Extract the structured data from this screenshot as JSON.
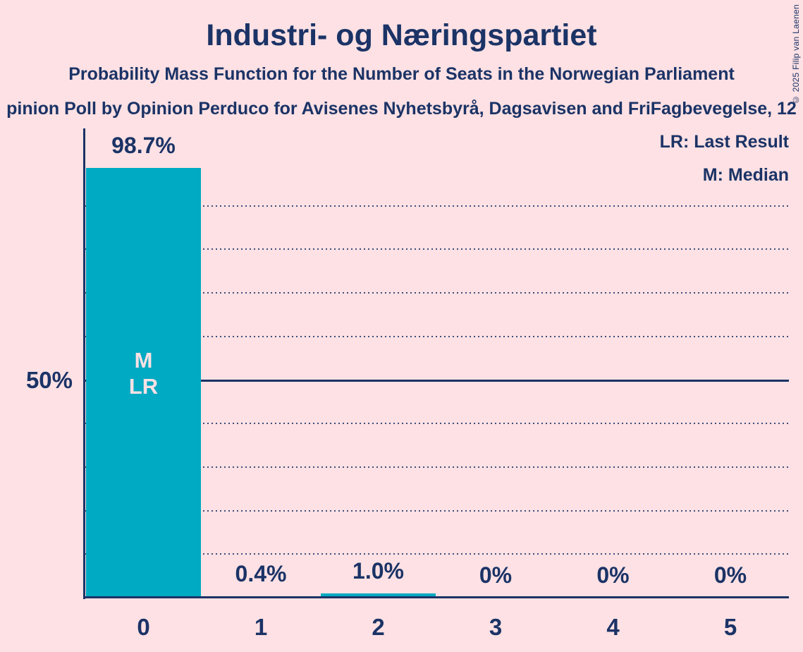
{
  "page": {
    "title": "Industri- og Næringspartiet",
    "subtitle": "Probability Mass Function for the Number of Seats in the Norwegian Parliament",
    "source_line": "pinion Poll by Opinion Perduco for Avisenes Nyhetsbyrå, Dagsavisen and FriFagbevegelse, 12",
    "copyright": "© 2025 Filip van Laenen"
  },
  "legend": {
    "items": [
      {
        "label": "LR: Last Result"
      },
      {
        "label": "M: Median"
      }
    ]
  },
  "colors": {
    "background": "#fde1e4",
    "bar": "#00aac2",
    "text": "#1b3366",
    "bar_annotation_text": "#fde1e4"
  },
  "chart_data": {
    "type": "bar",
    "title": "Industri- og Næringspartiet",
    "subtitle": "Probability Mass Function for the Number of Seats in the Norwegian Parliament",
    "categories": [
      "0",
      "1",
      "2",
      "3",
      "4",
      "5"
    ],
    "values": [
      98.7,
      0.4,
      1.0,
      0,
      0,
      0
    ],
    "value_labels": [
      "98.7%",
      "0.4%",
      "1.0%",
      "0%",
      "0%",
      "0%"
    ],
    "y_axis_label_50": "50%",
    "ylim": [
      0,
      100
    ],
    "grid": true,
    "dotted_gridlines_pct": [
      10,
      20,
      30,
      40,
      60,
      70,
      80,
      90
    ],
    "solid_gridline_pct": 50,
    "legend_position": "top-right",
    "annotations": [
      {
        "category_index": 0,
        "lines": [
          "M",
          "LR"
        ]
      }
    ]
  }
}
